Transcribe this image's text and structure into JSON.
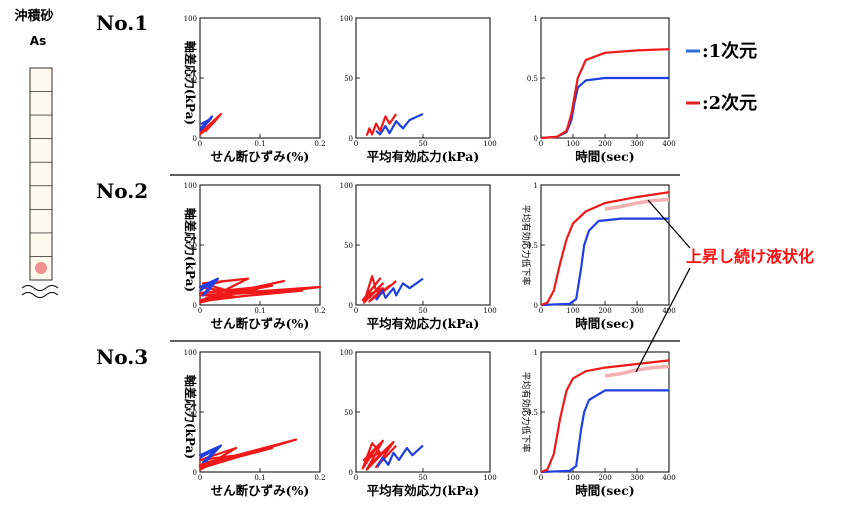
{
  "column": {
    "title": "沖積砂",
    "sublabel": "As",
    "cells": 8
  },
  "legend": {
    "items": [
      {
        "label": "-:1次元",
        "color": "#2b6fd6"
      },
      {
        "label": "-:2次元",
        "color": "#e02020"
      }
    ]
  },
  "annotation": {
    "text": "上昇し続け液状化",
    "color": "#ff1010"
  },
  "series_colors": {
    "blue": "#1f3fe0",
    "red": "#f01818",
    "pink": "#f4b0b0"
  },
  "chart_data": [
    {
      "type": "line",
      "row": "No.1",
      "xlabel": "せん断ひずみ(%)",
      "ylabel": "軸差応力(kPa)",
      "xlim": [
        0,
        0.2
      ],
      "ylim": [
        0,
        100
      ],
      "xticks": [
        "0",
        "0.1",
        "0.2"
      ],
      "yticks": [
        "0",
        "50",
        "100"
      ],
      "series": [
        {
          "color": "blue",
          "points": [
            [
              0.0,
              5
            ],
            [
              0.02,
              18
            ],
            [
              0.005,
              10
            ],
            [
              0.018,
              16
            ],
            [
              0.003,
              12
            ],
            [
              0.015,
              14
            ],
            [
              0.0,
              8
            ]
          ]
        },
        {
          "color": "red",
          "points": [
            [
              0.0,
              4
            ],
            [
              0.035,
              20
            ],
            [
              0.01,
              6
            ],
            [
              0.03,
              17
            ],
            [
              0.005,
              5
            ],
            [
              0.025,
              14
            ],
            [
              0.0,
              3
            ]
          ]
        }
      ]
    },
    {
      "type": "line",
      "row": "No.1",
      "xlabel": "平均有効応力(kPa)",
      "ylabel": "",
      "xlim": [
        0,
        100
      ],
      "ylim": [
        0,
        100
      ],
      "xticks": [
        "0",
        "50",
        "100"
      ],
      "yticks": [
        "0",
        "50",
        "100"
      ],
      "series": [
        {
          "color": "blue",
          "points": [
            [
              50,
              20
            ],
            [
              40,
              15
            ],
            [
              35,
              8
            ],
            [
              30,
              14
            ],
            [
              25,
              4
            ],
            [
              22,
              10
            ],
            [
              18,
              3
            ],
            [
              15,
              6
            ]
          ]
        },
        {
          "color": "red",
          "points": [
            [
              30,
              20
            ],
            [
              25,
              12
            ],
            [
              22,
              18
            ],
            [
              18,
              6
            ],
            [
              15,
              12
            ],
            [
              12,
              3
            ],
            [
              10,
              8
            ],
            [
              8,
              2
            ]
          ]
        }
      ]
    },
    {
      "type": "line",
      "row": "No.1",
      "xlabel": "時間(sec)",
      "ylabel": "",
      "xlim": [
        0,
        400
      ],
      "ylim": [
        0,
        1
      ],
      "xticks": [
        "0",
        "100",
        "200",
        "300",
        "400"
      ],
      "yticks": [
        "0",
        "0.5",
        "1"
      ],
      "series": [
        {
          "color": "blue",
          "points": [
            [
              0,
              0
            ],
            [
              50,
              0.01
            ],
            [
              80,
              0.05
            ],
            [
              95,
              0.15
            ],
            [
              105,
              0.3
            ],
            [
              115,
              0.42
            ],
            [
              140,
              0.48
            ],
            [
              200,
              0.5
            ],
            [
              400,
              0.5
            ]
          ]
        },
        {
          "color": "red",
          "points": [
            [
              0,
              0
            ],
            [
              50,
              0.01
            ],
            [
              80,
              0.06
            ],
            [
              95,
              0.2
            ],
            [
              105,
              0.35
            ],
            [
              115,
              0.5
            ],
            [
              140,
              0.65
            ],
            [
              200,
              0.71
            ],
            [
              300,
              0.73
            ],
            [
              400,
              0.74
            ]
          ]
        }
      ]
    },
    {
      "type": "line",
      "row": "No.2",
      "xlabel": "せん断ひずみ(%)",
      "ylabel": "軸差応力(kPa)",
      "xlim": [
        0,
        0.2
      ],
      "ylim": [
        0,
        100
      ],
      "xticks": [
        "0",
        "0.1",
        "0.2"
      ],
      "yticks": [
        "0",
        "50",
        "100"
      ],
      "series": [
        {
          "color": "red",
          "points": [
            [
              0.0,
              3
            ],
            [
              0.2,
              15
            ],
            [
              0.0,
              8
            ],
            [
              0.17,
              12
            ],
            [
              0.0,
              4
            ],
            [
              0.14,
              20
            ],
            [
              0.01,
              6
            ],
            [
              0.12,
              16
            ],
            [
              0.0,
              10
            ],
            [
              0.1,
              14
            ],
            [
              0.0,
              2
            ],
            [
              0.08,
              22
            ],
            [
              0.005,
              18
            ],
            [
              0.06,
              10
            ],
            [
              0.0,
              15
            ],
            [
              0.04,
              20
            ]
          ]
        },
        {
          "color": "blue",
          "points": [
            [
              0.0,
              12
            ],
            [
              0.025,
              20
            ],
            [
              0.005,
              8
            ],
            [
              0.02,
              18
            ],
            [
              0.0,
              15
            ],
            [
              0.03,
              22
            ],
            [
              0.01,
              10
            ],
            [
              0.02,
              16
            ]
          ]
        }
      ]
    },
    {
      "type": "line",
      "row": "No.2",
      "xlabel": "平均有効応力(kPa)",
      "ylabel": "",
      "xlim": [
        0,
        100
      ],
      "ylim": [
        0,
        100
      ],
      "xticks": [
        "0",
        "50",
        "100"
      ],
      "yticks": [
        "0",
        "50",
        "100"
      ],
      "series": [
        {
          "color": "red",
          "points": [
            [
              30,
              20
            ],
            [
              15,
              6
            ],
            [
              25,
              16
            ],
            [
              10,
              3
            ],
            [
              20,
              14
            ],
            [
              8,
              8
            ],
            [
              18,
              22
            ],
            [
              5,
              4
            ],
            [
              15,
              12
            ],
            [
              12,
              24
            ],
            [
              6,
              2
            ],
            [
              20,
              18
            ],
            [
              10,
              6
            ]
          ]
        },
        {
          "color": "blue",
          "points": [
            [
              50,
              22
            ],
            [
              40,
              14
            ],
            [
              35,
              18
            ],
            [
              30,
              8
            ],
            [
              28,
              14
            ],
            [
              22,
              6
            ],
            [
              20,
              12
            ],
            [
              15,
              4
            ]
          ]
        }
      ]
    },
    {
      "type": "line",
      "row": "No.2",
      "xlabel": "時間(sec)",
      "ylabel": "平均有効応力低下率",
      "xlim": [
        0,
        400
      ],
      "ylim": [
        0,
        1
      ],
      "xticks": [
        "0",
        "100",
        "200",
        "300",
        "400"
      ],
      "yticks": [
        "0",
        "0.5",
        "1"
      ],
      "series": [
        {
          "color": "blue",
          "points": [
            [
              0,
              0
            ],
            [
              90,
              0.01
            ],
            [
              110,
              0.05
            ],
            [
              125,
              0.3
            ],
            [
              135,
              0.5
            ],
            [
              150,
              0.62
            ],
            [
              180,
              0.7
            ],
            [
              250,
              0.72
            ],
            [
              400,
              0.72
            ]
          ]
        },
        {
          "color": "red",
          "points": [
            [
              0,
              0
            ],
            [
              20,
              0.02
            ],
            [
              40,
              0.12
            ],
            [
              60,
              0.35
            ],
            [
              80,
              0.55
            ],
            [
              100,
              0.68
            ],
            [
              140,
              0.78
            ],
            [
              200,
              0.85
            ],
            [
              300,
              0.9
            ],
            [
              400,
              0.94
            ]
          ]
        },
        {
          "color": "pink",
          "points": [
            [
              200,
              0.8
            ],
            [
              250,
              0.82
            ],
            [
              300,
              0.85
            ],
            [
              350,
              0.87
            ],
            [
              400,
              0.88
            ]
          ]
        }
      ]
    },
    {
      "type": "line",
      "row": "No.3",
      "xlabel": "せん断ひずみ(%)",
      "ylabel": "軸差応力(kPa)",
      "xlim": [
        0,
        0.2
      ],
      "ylim": [
        0,
        100
      ],
      "xticks": [
        "0",
        "0.1",
        "0.2"
      ],
      "yticks": [
        "0",
        "50",
        "100"
      ],
      "series": [
        {
          "color": "red",
          "points": [
            [
              0.0,
              3
            ],
            [
              0.16,
              27
            ],
            [
              0.0,
              6
            ],
            [
              0.14,
              24
            ],
            [
              0.0,
              4
            ],
            [
              0.12,
              20
            ],
            [
              0.01,
              8
            ],
            [
              0.1,
              18
            ],
            [
              0.0,
              5
            ],
            [
              0.08,
              15
            ],
            [
              0.0,
              10
            ],
            [
              0.06,
              20
            ],
            [
              0.0,
              2
            ],
            [
              0.04,
              12
            ]
          ]
        },
        {
          "color": "blue",
          "points": [
            [
              0.0,
              12
            ],
            [
              0.03,
              20
            ],
            [
              0.005,
              8
            ],
            [
              0.025,
              18
            ],
            [
              0.0,
              14
            ],
            [
              0.035,
              22
            ],
            [
              0.01,
              9
            ],
            [
              0.02,
              15
            ]
          ]
        }
      ]
    },
    {
      "type": "line",
      "row": "No.3",
      "xlabel": "平均有効応力(kPa)",
      "ylabel": "",
      "xlim": [
        0,
        100
      ],
      "ylim": [
        0,
        100
      ],
      "xticks": [
        "0",
        "50",
        "100"
      ],
      "yticks": [
        "0",
        "50",
        "100"
      ],
      "series": [
        {
          "color": "red",
          "points": [
            [
              30,
              22
            ],
            [
              15,
              4
            ],
            [
              28,
              25
            ],
            [
              10,
              6
            ],
            [
              22,
              18
            ],
            [
              8,
              2
            ],
            [
              20,
              26
            ],
            [
              6,
              10
            ],
            [
              18,
              16
            ],
            [
              12,
              24
            ],
            [
              5,
              3
            ],
            [
              15,
              20
            ]
          ]
        },
        {
          "color": "blue",
          "points": [
            [
              50,
              22
            ],
            [
              42,
              14
            ],
            [
              38,
              20
            ],
            [
              32,
              10
            ],
            [
              28,
              16
            ],
            [
              24,
              6
            ],
            [
              20,
              12
            ],
            [
              16,
              4
            ]
          ]
        }
      ]
    },
    {
      "type": "line",
      "row": "No.3",
      "xlabel": "時間(sec)",
      "ylabel": "平均有効応力低下率",
      "xlim": [
        0,
        400
      ],
      "ylim": [
        0,
        1
      ],
      "xticks": [
        "0",
        "100",
        "200",
        "300",
        "400"
      ],
      "yticks": [
        "0",
        "0.5",
        "1"
      ],
      "series": [
        {
          "color": "blue",
          "points": [
            [
              0,
              0
            ],
            [
              90,
              0.01
            ],
            [
              110,
              0.05
            ],
            [
              125,
              0.35
            ],
            [
              135,
              0.5
            ],
            [
              150,
              0.6
            ],
            [
              200,
              0.68
            ],
            [
              400,
              0.68
            ]
          ]
        },
        {
          "color": "red",
          "points": [
            [
              0,
              0
            ],
            [
              20,
              0.02
            ],
            [
              40,
              0.15
            ],
            [
              60,
              0.45
            ],
            [
              80,
              0.68
            ],
            [
              100,
              0.78
            ],
            [
              140,
              0.84
            ],
            [
              200,
              0.87
            ],
            [
              300,
              0.9
            ],
            [
              400,
              0.93
            ]
          ]
        },
        {
          "color": "pink",
          "points": [
            [
              200,
              0.8
            ],
            [
              250,
              0.82
            ],
            [
              300,
              0.85
            ],
            [
              350,
              0.87
            ],
            [
              400,
              0.88
            ]
          ]
        }
      ]
    }
  ]
}
